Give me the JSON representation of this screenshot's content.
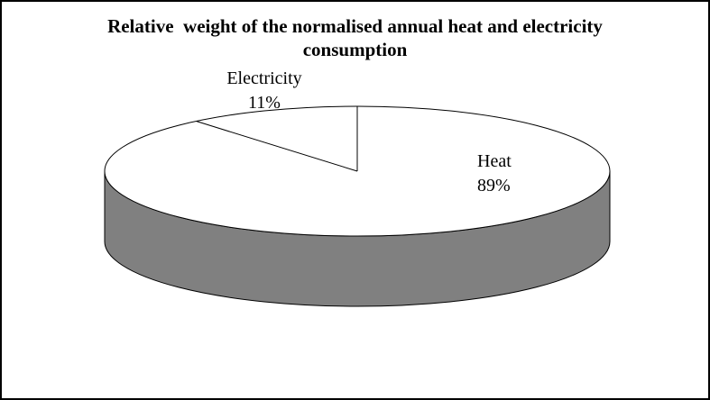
{
  "frame": {
    "background_color": "#ffffff",
    "border_color": "#000000"
  },
  "chart_data": {
    "type": "pie",
    "style": "3d-cylinder",
    "title": "Relative  weight of the normalised annual heat and electricity consumption",
    "title_lines": [
      "Relative  weight of the normalised annual heat and electricity",
      "consumption"
    ],
    "slices": [
      {
        "label": "Heat",
        "value": 89,
        "pct_label": "89%",
        "top_color": "#ffffff"
      },
      {
        "label": "Electricity",
        "value": 11,
        "pct_label": "11%",
        "top_color": "#ffffff"
      }
    ],
    "total": 100,
    "start_position": "12-o'clock",
    "direction": "clockwise",
    "side_color": "#808080",
    "outline_color": "#000000",
    "legend": "none",
    "data_labels": "category-name-and-percentage-outside"
  }
}
